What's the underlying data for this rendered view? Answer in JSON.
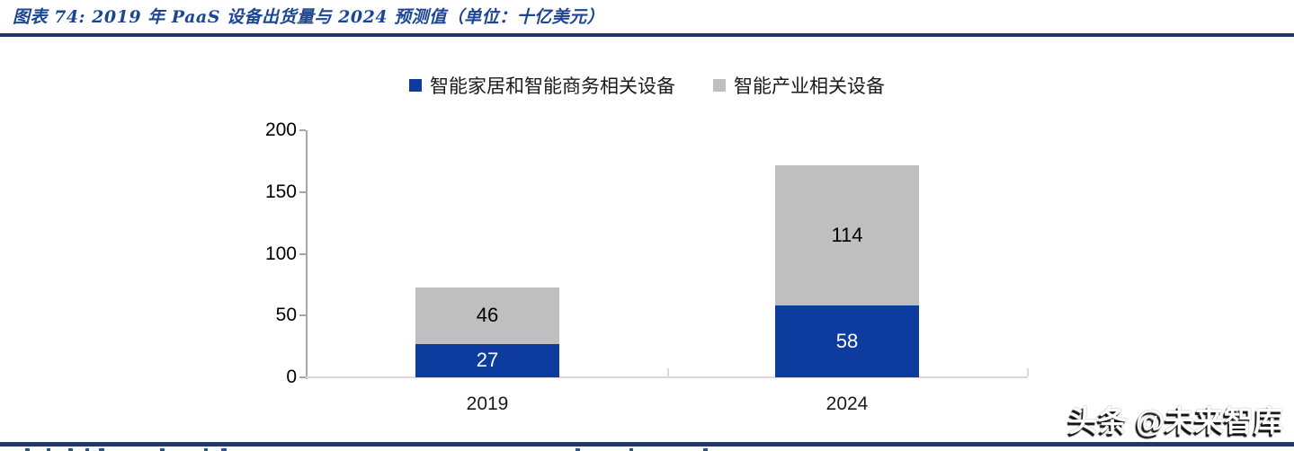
{
  "header": {
    "title": "图表 74:  2019 年 PaaS 设备出货量与 2024 预测值（单位：十亿美元）"
  },
  "watermark": "头条 @未来智库",
  "colors": {
    "rule_navy": "#1F3864",
    "title_blue": "#1C4693",
    "series_blue": "#0D3C9E",
    "series_gray": "#BFBFBF",
    "axis_gray": "#A6A6A6",
    "baseline_gray": "#D9D9D9"
  },
  "chart_data": {
    "type": "bar",
    "stacked": true,
    "title": "2019 年 PaaS 设备出货量与 2024 预测值",
    "unit": "十亿美元",
    "categories": [
      "2019",
      "2024"
    ],
    "series": [
      {
        "name": "智能家居和智能商务相关设备",
        "color": "#0D3C9E",
        "label_color": "#FFFFFF",
        "values": [
          27,
          58
        ]
      },
      {
        "name": "智能产业相关设备",
        "color": "#BFBFBF",
        "label_color": "#000000",
        "values": [
          46,
          114
        ]
      }
    ],
    "totals": [
      73,
      172
    ],
    "ylim": [
      0,
      200
    ],
    "yticks": [
      0,
      50,
      100,
      150,
      200
    ],
    "grid": false,
    "data_labels": true,
    "legend_position": "top-center"
  }
}
